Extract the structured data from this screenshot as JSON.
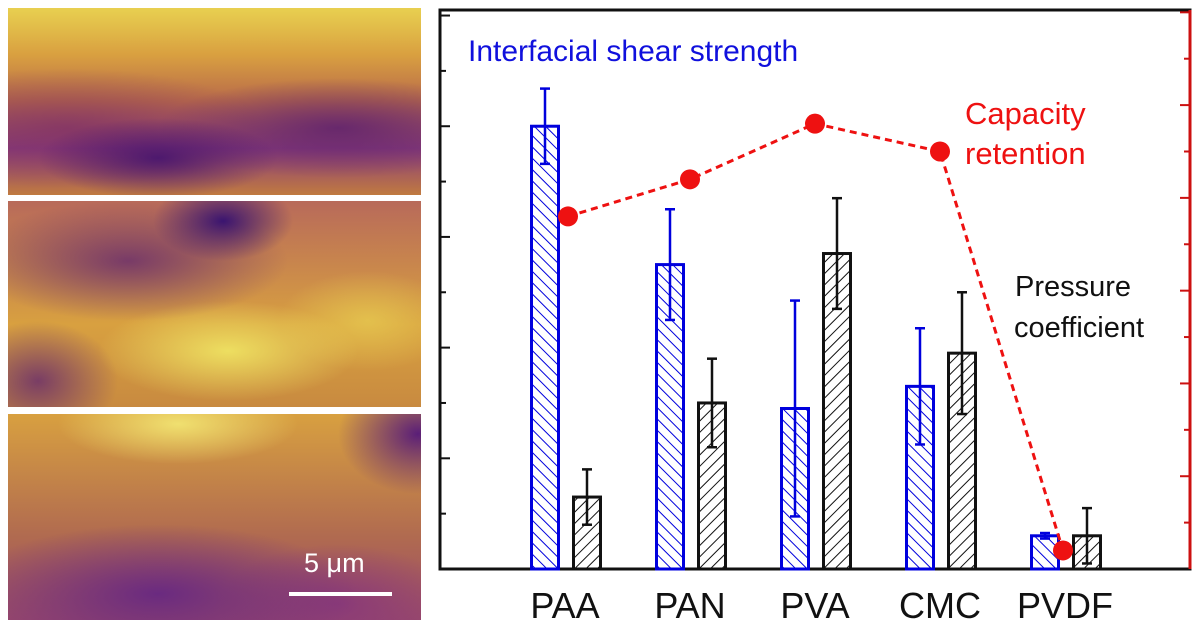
{
  "images": {
    "scale_bar_label": "5 μm"
  },
  "chart_data": {
    "type": "bar",
    "categories": [
      "PAA",
      "PAN",
      "PVA",
      "CMC",
      "PVDF"
    ],
    "ylim_left": [
      0,
      10.1
    ],
    "ylim_right": [
      0,
      12.05
    ],
    "y_ticks_labeled": false,
    "grid": false,
    "series": [
      {
        "name": "Interfacial shear strength",
        "kind": "bar",
        "axis": "left",
        "color": "#0000dd",
        "hatch": "backslash",
        "values": [
          8.0,
          5.5,
          2.9,
          3.3,
          0.6
        ],
        "errors": [
          0.68,
          1.0,
          1.95,
          1.05,
          0.05
        ]
      },
      {
        "name": "Pressure coefficient",
        "kind": "bar",
        "axis": "left",
        "color": "#111111",
        "hatch": "slash",
        "values": [
          1.3,
          3.0,
          5.7,
          3.9,
          0.6
        ],
        "errors": [
          0.5,
          0.8,
          1.0,
          1.1,
          0.5
        ]
      },
      {
        "name": "Capacity retention",
        "kind": "line",
        "axis": "right",
        "color": "#ee1111",
        "style": "dashed-markers",
        "values": [
          7.6,
          8.4,
          9.6,
          9.0,
          0.4
        ]
      }
    ],
    "labels": {
      "ifss_line1": "Interfacial shear strength",
      "cr_line1": "Capacity",
      "cr_line2": "retention",
      "pc_line1": "Pressure",
      "pc_line2": "coefficient"
    }
  }
}
